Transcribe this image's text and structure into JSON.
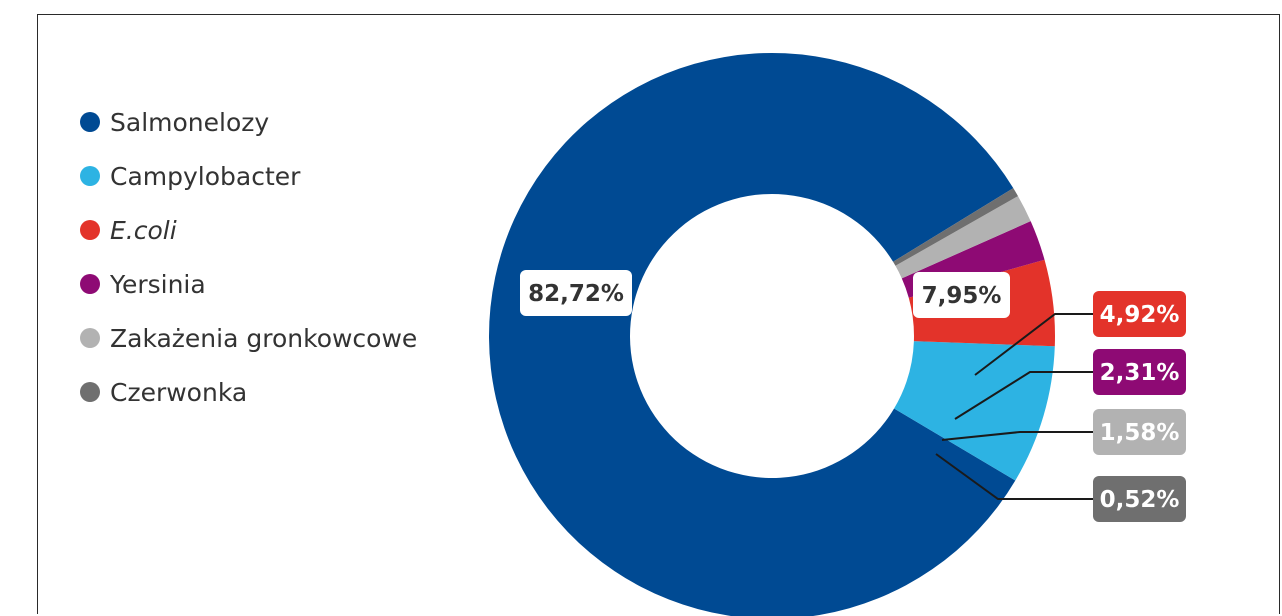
{
  "chart_data": {
    "type": "pie",
    "donut": true,
    "legend_position": "left",
    "series": [
      {
        "name": "Salmonelozy",
        "value": 82.72,
        "label": "82,72%",
        "color": "#004a93",
        "label_style": "white-inside",
        "italic": false
      },
      {
        "name": "Campylobacter",
        "value": 7.95,
        "label": "7,95%",
        "color": "#2db3e3",
        "label_style": "white-inside",
        "italic": false
      },
      {
        "name": "E.coli",
        "value": 4.92,
        "label": "4,92%",
        "color": "#e3332a",
        "label_style": "colored-callout",
        "italic": true
      },
      {
        "name": "Yersinia",
        "value": 2.31,
        "label": "2,31%",
        "color": "#8e0a74",
        "label_style": "colored-callout",
        "italic": false
      },
      {
        "name": "Zakażenia gronkowcowe",
        "value": 1.58,
        "label": "1,58%",
        "color": "#b2b2b2",
        "label_style": "colored-callout",
        "italic": false
      },
      {
        "name": "Czerwonka",
        "value": 0.52,
        "label": "0,52%",
        "color": "#6f6f6f",
        "label_style": "colored-callout",
        "italic": false
      }
    ]
  }
}
